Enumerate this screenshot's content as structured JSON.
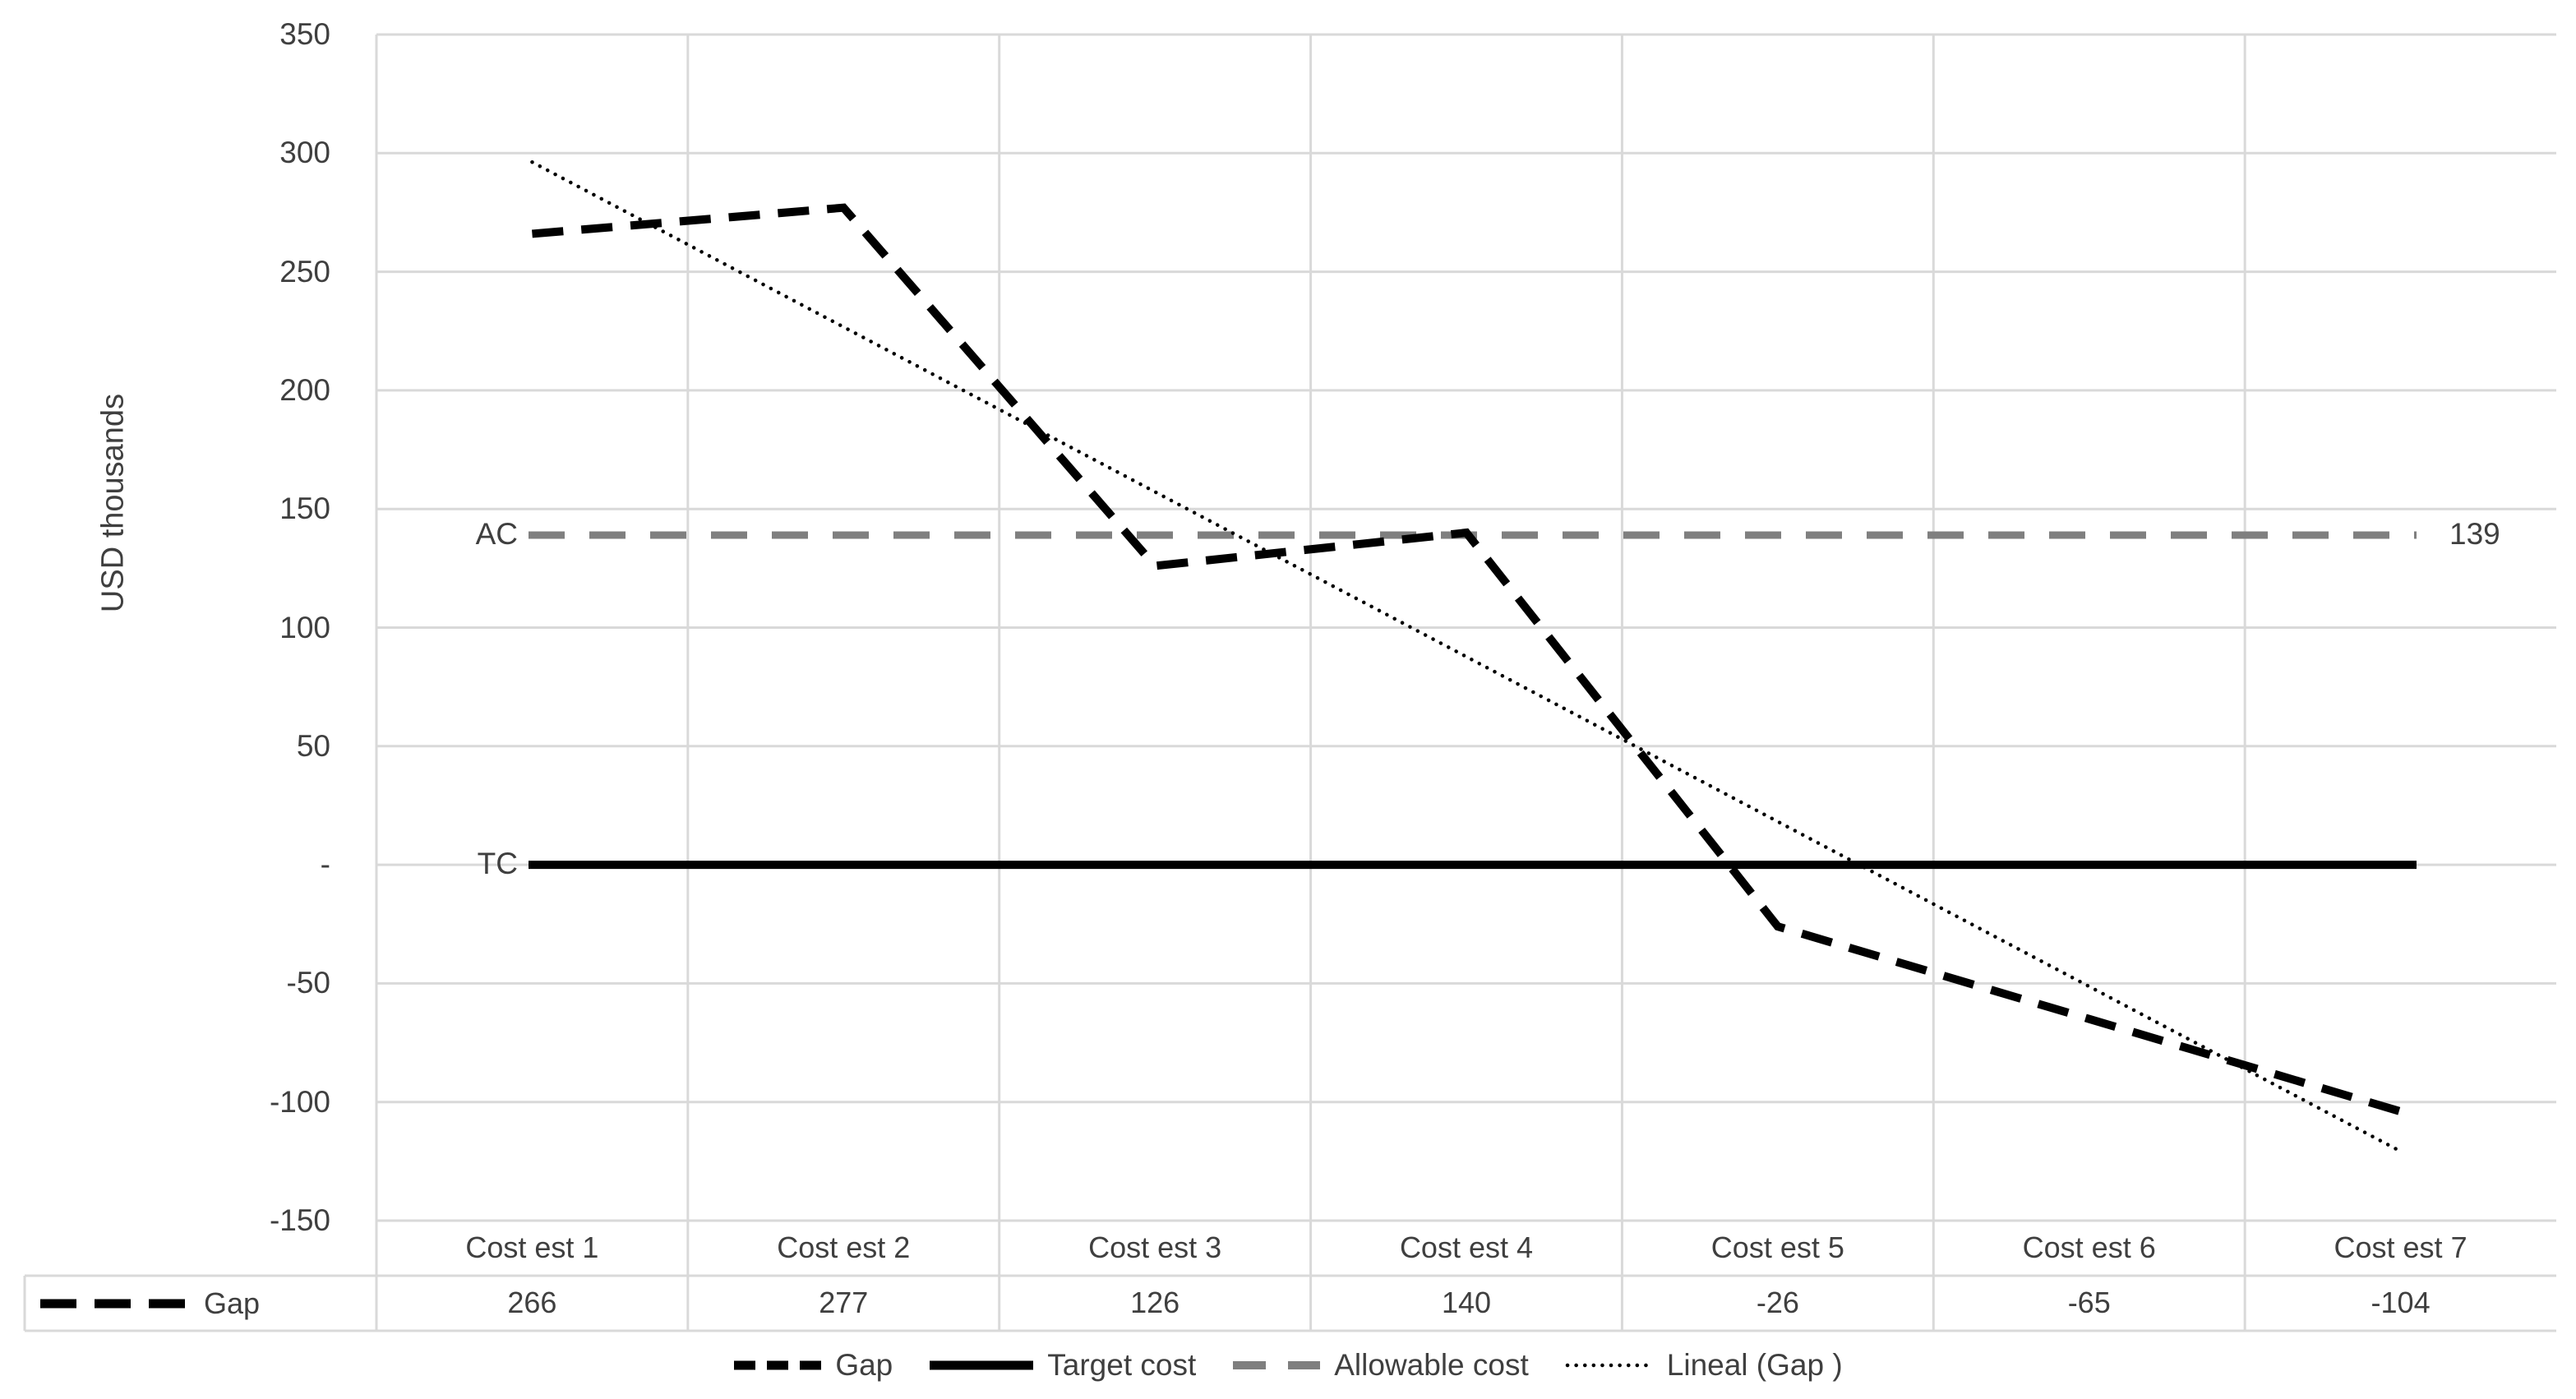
{
  "chart": {
    "y_axis_title": "USD thousands",
    "ac_label": "AC",
    "tc_label": "TC",
    "ac_value_label": "139"
  },
  "chart_data": {
    "type": "line",
    "title": "",
    "xlabel": "",
    "ylabel": "USD thousands",
    "ylim": [
      -150,
      350
    ],
    "ytick_step": 50,
    "yticks": [
      "350",
      "300",
      "250",
      "200",
      "150",
      "100",
      "50",
      "-",
      "-50",
      "-100",
      "-150"
    ],
    "grid": true,
    "legend_position": "bottom",
    "categories": [
      "Cost est 1",
      "Cost est 2",
      "Cost est 3",
      "Cost est 4",
      "Cost est 5",
      "Cost est 6",
      "Cost est 7"
    ],
    "series": [
      {
        "name": "Gap",
        "style": "thick-black-dashed",
        "values": [
          266,
          277,
          126,
          140,
          -26,
          -65,
          -104
        ]
      },
      {
        "name": "Target cost",
        "style": "thick-black-solid",
        "value": 0,
        "annotation": "TC"
      },
      {
        "name": "Allowable cost",
        "style": "thick-gray-dashed",
        "value": 139,
        "annotation": "AC",
        "value_label": "139"
      },
      {
        "name": "Lineal (Gap )",
        "style": "dotted-black-trendline",
        "trend_of": "Gap"
      }
    ],
    "data_table": {
      "row_label": "Gap",
      "values": [
        "266",
        "277",
        "126",
        "140",
        "-26",
        "-65",
        "-104"
      ]
    }
  },
  "legend": {
    "items": [
      {
        "label": "Gap",
        "marker": "black-dashed-line"
      },
      {
        "label": "Target cost",
        "marker": "black-solid-line"
      },
      {
        "label": "Allowable cost",
        "marker": "gray-dashed-line"
      },
      {
        "label": "Lineal (Gap )",
        "marker": "black-dotted-line"
      }
    ]
  },
  "colors": {
    "series_black": "#000000",
    "allowable_gray": "#7f7f7f",
    "gridline": "#d9d9d9",
    "text": "#3f3f3f",
    "background": "#ffffff"
  }
}
